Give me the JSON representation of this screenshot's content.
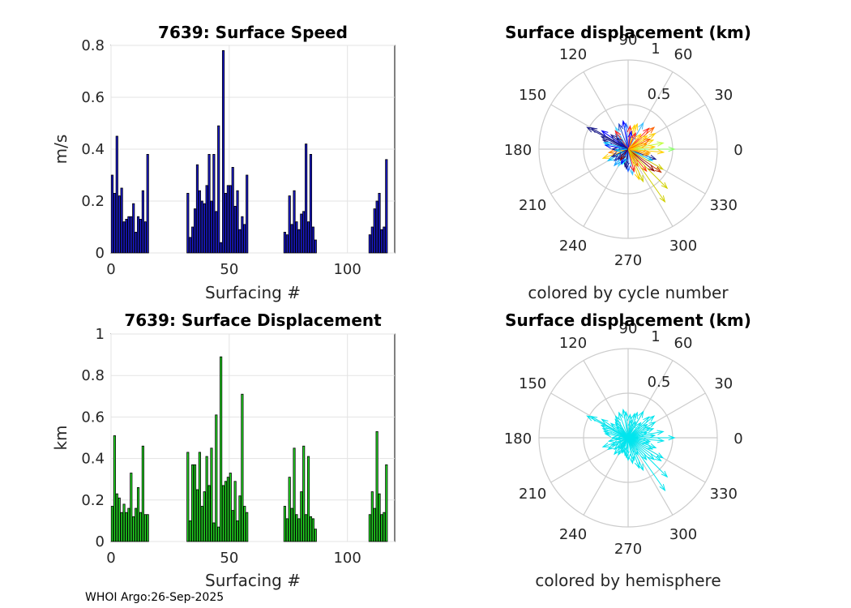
{
  "chart_data": [
    {
      "type": "bar",
      "title": "7639: Surface Speed",
      "xlabel": "Surfacing #",
      "ylabel": "m/s",
      "xlim": [
        0,
        120
      ],
      "ylim": [
        0,
        0.8
      ],
      "xticks": [
        0,
        50,
        100
      ],
      "yticks": [
        0,
        0.2,
        0.4,
        0.6,
        0.8
      ],
      "ytick_labels": [
        "0",
        "0.2",
        "0.4",
        "0.6",
        "0.8"
      ],
      "bar_color": "#1a1ad0",
      "x": [
        0,
        1,
        2,
        3,
        4,
        5,
        6,
        7,
        8,
        9,
        10,
        11,
        12,
        13,
        14,
        15,
        32,
        33,
        34,
        35,
        36,
        37,
        38,
        39,
        40,
        41,
        42,
        43,
        44,
        45,
        46,
        47,
        48,
        49,
        50,
        51,
        52,
        53,
        54,
        55,
        56,
        57,
        73,
        74,
        75,
        76,
        77,
        78,
        79,
        80,
        81,
        82,
        83,
        84,
        85,
        86,
        109,
        110,
        111,
        112,
        113,
        114,
        115,
        116
      ],
      "values": [
        0.3,
        0.23,
        0.45,
        0.22,
        0.25,
        0.12,
        0.13,
        0.14,
        0.14,
        0.19,
        0.08,
        0.14,
        0.13,
        0.24,
        0.12,
        0.38,
        0.23,
        0.06,
        0.1,
        0.17,
        0.34,
        0.24,
        0.2,
        0.19,
        0.26,
        0.38,
        0.2,
        0.38,
        0.16,
        0.49,
        0.04,
        0.78,
        0.23,
        0.26,
        0.26,
        0.33,
        0.18,
        0.24,
        0.09,
        0.14,
        0.11,
        0.3,
        0.08,
        0.07,
        0.22,
        0.11,
        0.24,
        0.12,
        0.09,
        0.15,
        0.16,
        0.42,
        0.12,
        0.38,
        0.1,
        0.05,
        0.07,
        0.1,
        0.17,
        0.2,
        0.23,
        0.09,
        0.1,
        0.36
      ]
    },
    {
      "type": "polar-compass",
      "title": "Surface displacement (km)",
      "caption": "colored by cycle number",
      "r_ticks": [
        "0.5",
        "1"
      ],
      "angle_labels": [
        "0",
        "30",
        "60",
        "90",
        "120",
        "150",
        "180",
        "210",
        "240",
        "270",
        "300",
        "330"
      ],
      "r_max": 1.0,
      "vectors_angle_deg": [
        152,
        150,
        145,
        160,
        120,
        130,
        140,
        100,
        95,
        85,
        75,
        70,
        60,
        45,
        40,
        30,
        20,
        10,
        0,
        -5,
        -10,
        -20,
        -25,
        -30,
        -40,
        -50,
        -60,
        -70,
        -80,
        -90,
        -100,
        -110,
        -120,
        -130,
        -140,
        -150,
        -160,
        -170,
        180,
        170,
        165,
        155,
        125,
        110,
        80,
        65,
        35,
        15,
        5,
        -15,
        -35,
        -55,
        -75,
        -95,
        -115,
        -135,
        -155,
        -175,
        50,
        25,
        -45,
        -65,
        135,
        -125
      ],
      "vectors_r_km": [
        0.52,
        0.48,
        0.36,
        0.3,
        0.28,
        0.22,
        0.25,
        0.32,
        0.29,
        0.26,
        0.28,
        0.3,
        0.34,
        0.33,
        0.38,
        0.35,
        0.3,
        0.4,
        0.52,
        0.4,
        0.25,
        0.33,
        0.3,
        0.45,
        0.38,
        0.32,
        0.22,
        0.36,
        0.29,
        0.25,
        0.2,
        0.18,
        0.22,
        0.24,
        0.2,
        0.26,
        0.3,
        0.22,
        0.18,
        0.26,
        0.28,
        0.33,
        0.25,
        0.3,
        0.2,
        0.2,
        0.26,
        0.22,
        0.3,
        0.24,
        0.45,
        0.72,
        0.26,
        0.22,
        0.18,
        0.16,
        0.2,
        0.14,
        0.22,
        0.27,
        0.62,
        0.4,
        0.18,
        0.15
      ],
      "colors": [
        "#1a1a8a",
        "#1a1a8a",
        "#0000ff",
        "#1a1a8a",
        "#4ad6ff",
        "#1aa0ff",
        "#1a1a8a",
        "#0000ff",
        "#2060ff",
        "#ff2020",
        "#ffd000",
        "#ffd000",
        "#40c0ff",
        "#ff2020",
        "#ff6000",
        "#ffd000",
        "#ffd000",
        "#c0ff40",
        "#8aff6a",
        "#ffd000",
        "#ffa000",
        "#1a1a8a",
        "#00c0ff",
        "#d0d000",
        "#8a0000",
        "#ff4000",
        "#ff6000",
        "#ffd000",
        "#40c0ff",
        "#2060ff",
        "#1a1a8a",
        "#00ffff",
        "#4ad6ff",
        "#1aa0ff",
        "#2040c0",
        "#00c0ff",
        "#ffd000",
        "#ff8000",
        "#1a1a8a",
        "#0000ff",
        "#00c0ff",
        "#1a1a8a",
        "#ff2020",
        "#2040c0",
        "#0000ff",
        "#ff2020",
        "#ffd000",
        "#ffa000",
        "#ffd000",
        "#ffa000",
        "#c03000",
        "#d0d000",
        "#ff2020",
        "#1a1a8a",
        "#0000ff",
        "#1a1a8a",
        "#1a1a8a",
        "#00c0ff",
        "#ffd000",
        "#ff6000",
        "#d0d000",
        "#d0d000",
        "#1a1a8a",
        "#8a0000"
      ]
    },
    {
      "type": "bar",
      "title": "7639: Surface Displacement",
      "xlabel": "Surfacing #",
      "ylabel": "km",
      "xlim": [
        0,
        120
      ],
      "ylim": [
        0,
        1
      ],
      "xticks": [
        0,
        50,
        100
      ],
      "yticks": [
        0,
        0.2,
        0.4,
        0.6,
        0.8,
        1
      ],
      "ytick_labels": [
        "0",
        "0.2",
        "0.4",
        "0.6",
        "0.8",
        "1"
      ],
      "bar_color": "#22dd22",
      "x": [
        0,
        1,
        2,
        3,
        4,
        5,
        6,
        7,
        8,
        9,
        10,
        11,
        12,
        13,
        14,
        15,
        32,
        33,
        34,
        35,
        36,
        37,
        38,
        39,
        40,
        41,
        42,
        43,
        44,
        45,
        46,
        47,
        48,
        49,
        50,
        51,
        52,
        53,
        54,
        55,
        56,
        57,
        73,
        74,
        75,
        76,
        77,
        78,
        79,
        80,
        81,
        82,
        83,
        84,
        85,
        86,
        109,
        110,
        111,
        112,
        113,
        114,
        115,
        116
      ],
      "values": [
        0.17,
        0.51,
        0.23,
        0.21,
        0.14,
        0.18,
        0.14,
        0.16,
        0.33,
        0.12,
        0.16,
        0.26,
        0.14,
        0.46,
        0.13,
        0.13,
        0.43,
        0.1,
        0.37,
        0.37,
        0.25,
        0.43,
        0.17,
        0.24,
        0.41,
        0.27,
        0.45,
        0.09,
        0.61,
        0.07,
        0.89,
        0.27,
        0.29,
        0.31,
        0.33,
        0.15,
        0.29,
        0.1,
        0.22,
        0.71,
        0.17,
        0.14,
        0.17,
        0.11,
        0.31,
        0.16,
        0.45,
        0.13,
        0.11,
        0.24,
        0.46,
        0.13,
        0.41,
        0.12,
        0.11,
        0.06,
        0.13,
        0.24,
        0.16,
        0.53,
        0.23,
        0.13,
        0.14,
        0.37
      ]
    },
    {
      "type": "polar-compass",
      "title": "Surface displacement (km)",
      "caption": "colored by hemisphere",
      "r_ticks": [
        "0.5",
        "1"
      ],
      "angle_labels": [
        "0",
        "30",
        "60",
        "90",
        "120",
        "150",
        "180",
        "210",
        "240",
        "270",
        "300",
        "330"
      ],
      "r_max": 1.0,
      "color": "#00e5ee"
    }
  ],
  "footer": "WHOI Argo:26-Sep-2025"
}
